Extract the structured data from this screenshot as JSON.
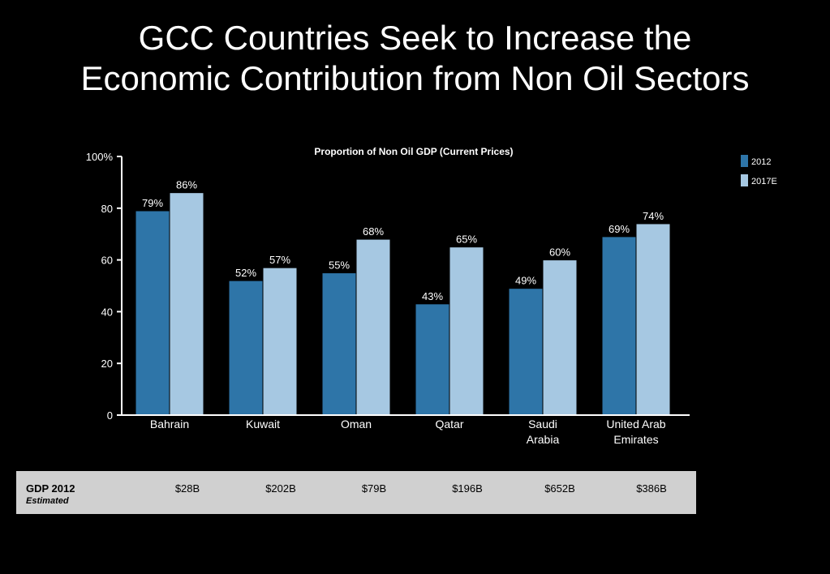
{
  "slide": {
    "title_line1": "GCC Countries Seek to Increase the",
    "title_line2": "Economic Contribution from Non Oil Sectors"
  },
  "chart_data": {
    "type": "bar",
    "title": "Proportion of Non Oil GDP (Current Prices)",
    "categories": [
      [
        "Bahrain"
      ],
      [
        "Kuwait"
      ],
      [
        "Oman"
      ],
      [
        "Qatar"
      ],
      [
        "Saudi",
        "Arabia"
      ],
      [
        "United Arab",
        "Emirates"
      ]
    ],
    "series": [
      {
        "name": "2012",
        "values": [
          79,
          52,
          55,
          43,
          49,
          69
        ],
        "labels": [
          "79%",
          "52%",
          "55%",
          "43%",
          "49%",
          "69%"
        ],
        "color": "#2e75a8"
      },
      {
        "name": "2017E",
        "values": [
          86,
          57,
          68,
          65,
          60,
          74
        ],
        "labels": [
          "86%",
          "57%",
          "68%",
          "65%",
          "60%",
          "74%"
        ],
        "color": "#a6c8e2"
      }
    ],
    "ylim": [
      0,
      100
    ],
    "yticks": [
      "0",
      "20",
      "40",
      "60",
      "80",
      "100%"
    ],
    "grid": false,
    "legend": "top-right"
  },
  "gdp_table": {
    "label": "GDP 2012",
    "sublabel": "Estimated",
    "values": [
      "$28B",
      "$202B",
      "$79B",
      "$196B",
      "$652B",
      "$386B"
    ]
  }
}
